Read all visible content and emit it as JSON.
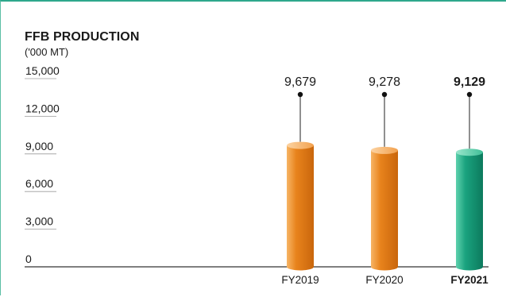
{
  "chart_data": {
    "type": "bar",
    "title": "FFB PRODUCTION",
    "unit": "('000 MT)",
    "categories": [
      "FY2019",
      "FY2020",
      "FY2021"
    ],
    "values": [
      9679,
      9278,
      9129
    ],
    "value_labels": [
      "9,679",
      "9,278",
      "9,129"
    ],
    "highlight_index": 2,
    "y_ticks": [
      0,
      3000,
      6000,
      9000,
      12000,
      15000
    ],
    "y_tick_labels": [
      "0",
      "3,000",
      "6,000",
      "9,000",
      "12,000",
      "15,000"
    ],
    "ylim": [
      0,
      15000
    ],
    "grid": false,
    "colors": {
      "bar": "#e8831c",
      "bar_highlight": "#1aa37f",
      "axis": "#333333",
      "tick_underline": "#9a9a9a",
      "frame": "#2ea88c"
    }
  }
}
